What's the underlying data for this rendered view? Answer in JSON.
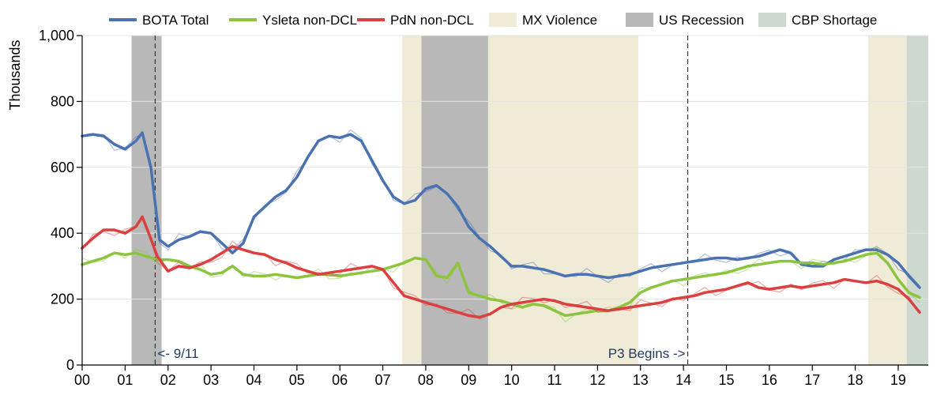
{
  "chart_data": {
    "type": "line",
    "title": "",
    "xlabel": "",
    "ylabel": "Thousands",
    "xlim": [
      2000.0,
      2019.7
    ],
    "ylim": [
      0,
      1000
    ],
    "grid": "horizontal",
    "legend_position": "top",
    "x_ticks": [
      {
        "value": 2000,
        "label": "00"
      },
      {
        "value": 2001,
        "label": "01"
      },
      {
        "value": 2002,
        "label": "02"
      },
      {
        "value": 2003,
        "label": "03"
      },
      {
        "value": 2004,
        "label": "04"
      },
      {
        "value": 2005,
        "label": "05"
      },
      {
        "value": 2006,
        "label": "06"
      },
      {
        "value": 2007,
        "label": "07"
      },
      {
        "value": 2008,
        "label": "08"
      },
      {
        "value": 2009,
        "label": "09"
      },
      {
        "value": 2010,
        "label": "10"
      },
      {
        "value": 2011,
        "label": "11"
      },
      {
        "value": 2012,
        "label": "12"
      },
      {
        "value": 2013,
        "label": "13"
      },
      {
        "value": 2014,
        "label": "14"
      },
      {
        "value": 2015,
        "label": "15"
      },
      {
        "value": 2016,
        "label": "16"
      },
      {
        "value": 2017,
        "label": "17"
      },
      {
        "value": 2018,
        "label": "18"
      },
      {
        "value": 2019,
        "label": "19"
      }
    ],
    "y_ticks": [
      {
        "value": 0,
        "label": "0"
      },
      {
        "value": 200,
        "label": "200"
      },
      {
        "value": 400,
        "label": "400"
      },
      {
        "value": 600,
        "label": "600"
      },
      {
        "value": 800,
        "label": "800"
      },
      {
        "value": 1000,
        "label": "1,000"
      }
    ],
    "bands": [
      {
        "name": "MX Violence",
        "color": "#efebd6",
        "x0": 2007.45,
        "x1": 2012.95
      },
      {
        "name": "MX Violence",
        "color": "#efebd6",
        "x0": 2018.3,
        "x1": 2019.2
      },
      {
        "name": "US Recession",
        "color": "#b8b8b8",
        "x0": 2001.15,
        "x1": 2001.85
      },
      {
        "name": "US Recession",
        "color": "#b8b8b8",
        "x0": 2007.9,
        "x1": 2009.45
      },
      {
        "name": "CBP Shortage",
        "color": "#ccd8d0",
        "x0": 2019.2,
        "x1": 2019.7
      }
    ],
    "vlines": [
      {
        "x": 2001.7,
        "label": "<- 9/11",
        "label_anchor": "start",
        "style": "dashed"
      },
      {
        "x": 2014.1,
        "label": "P3 Begins ->",
        "label_anchor": "end",
        "style": "dashed"
      }
    ],
    "legend": [
      {
        "label": "BOTA Total",
        "kind": "line",
        "color": "#4a72b0"
      },
      {
        "label": "Ysleta non-DCL",
        "kind": "line",
        "color": "#8cc43f"
      },
      {
        "label": "PdN non-DCL",
        "kind": "line",
        "color": "#d9403f"
      },
      {
        "label": "MX Violence",
        "kind": "box",
        "color": "#efebd6"
      },
      {
        "label": "US Recession",
        "kind": "box",
        "color": "#b8b8b8"
      },
      {
        "label": "CBP Shortage",
        "kind": "box",
        "color": "#ccd8d0"
      }
    ],
    "series": [
      {
        "name": "BOTA Total",
        "color": "#4a72b0",
        "x": [
          2000.0,
          2000.25,
          2000.5,
          2000.75,
          2001.0,
          2001.25,
          2001.4,
          2001.6,
          2001.8,
          2002.0,
          2002.25,
          2002.5,
          2002.75,
          2003.0,
          2003.25,
          2003.5,
          2003.75,
          2004.0,
          2004.25,
          2004.5,
          2004.75,
          2005.0,
          2005.25,
          2005.5,
          2005.75,
          2006.0,
          2006.25,
          2006.5,
          2006.75,
          2007.0,
          2007.25,
          2007.5,
          2007.75,
          2008.0,
          2008.25,
          2008.5,
          2008.75,
          2009.0,
          2009.25,
          2009.5,
          2009.75,
          2010.0,
          2010.25,
          2010.5,
          2010.75,
          2011.0,
          2011.25,
          2011.5,
          2011.75,
          2012.0,
          2012.25,
          2012.5,
          2012.75,
          2013.0,
          2013.25,
          2013.5,
          2013.75,
          2014.0,
          2014.25,
          2014.5,
          2014.75,
          2015.0,
          2015.25,
          2015.5,
          2015.75,
          2016.0,
          2016.25,
          2016.5,
          2016.75,
          2017.0,
          2017.25,
          2017.5,
          2017.75,
          2018.0,
          2018.25,
          2018.5,
          2018.75,
          2019.0,
          2019.25,
          2019.5
        ],
        "y": [
          695,
          700,
          695,
          670,
          655,
          680,
          705,
          600,
          380,
          360,
          380,
          390,
          405,
          400,
          370,
          340,
          370,
          450,
          480,
          510,
          530,
          570,
          630,
          680,
          695,
          690,
          700,
          680,
          620,
          560,
          510,
          490,
          500,
          535,
          545,
          520,
          480,
          420,
          385,
          360,
          330,
          300,
          300,
          295,
          290,
          280,
          270,
          275,
          275,
          270,
          265,
          270,
          275,
          285,
          295,
          300,
          305,
          310,
          315,
          320,
          325,
          325,
          320,
          325,
          330,
          340,
          350,
          340,
          305,
          300,
          300,
          320,
          330,
          340,
          350,
          350,
          335,
          310,
          270,
          235
        ]
      },
      {
        "name": "Ysleta non-DCL",
        "color": "#8cc43f",
        "x": [
          2000.0,
          2000.25,
          2000.5,
          2000.75,
          2001.0,
          2001.25,
          2001.5,
          2001.75,
          2002.0,
          2002.25,
          2002.5,
          2002.75,
          2003.0,
          2003.25,
          2003.5,
          2003.75,
          2004.0,
          2004.25,
          2004.5,
          2004.75,
          2005.0,
          2005.25,
          2005.5,
          2005.75,
          2006.0,
          2006.25,
          2006.5,
          2006.75,
          2007.0,
          2007.25,
          2007.5,
          2007.75,
          2008.0,
          2008.25,
          2008.5,
          2008.75,
          2009.0,
          2009.25,
          2009.5,
          2009.75,
          2010.0,
          2010.25,
          2010.5,
          2010.75,
          2011.0,
          2011.25,
          2011.5,
          2011.75,
          2012.0,
          2012.25,
          2012.5,
          2012.75,
          2013.0,
          2013.25,
          2013.5,
          2013.75,
          2014.0,
          2014.25,
          2014.5,
          2014.75,
          2015.0,
          2015.25,
          2015.5,
          2015.75,
          2016.0,
          2016.25,
          2016.5,
          2016.75,
          2017.0,
          2017.25,
          2017.5,
          2017.75,
          2018.0,
          2018.25,
          2018.5,
          2018.75,
          2019.0,
          2019.25,
          2019.5
        ],
        "y": [
          305,
          315,
          325,
          340,
          335,
          340,
          330,
          320,
          320,
          315,
          300,
          290,
          275,
          280,
          300,
          275,
          270,
          270,
          275,
          270,
          265,
          270,
          275,
          275,
          270,
          275,
          280,
          285,
          290,
          300,
          310,
          325,
          320,
          270,
          265,
          310,
          220,
          210,
          200,
          195,
          185,
          175,
          185,
          180,
          165,
          150,
          155,
          160,
          165,
          165,
          175,
          190,
          220,
          235,
          245,
          255,
          260,
          265,
          270,
          275,
          280,
          290,
          300,
          305,
          310,
          315,
          315,
          310,
          310,
          305,
          310,
          315,
          325,
          335,
          340,
          310,
          260,
          220,
          205
        ]
      },
      {
        "name": "PdN non-DCL",
        "color": "#d9403f",
        "x": [
          2000.0,
          2000.25,
          2000.5,
          2000.75,
          2001.0,
          2001.25,
          2001.4,
          2001.55,
          2001.75,
          2002.0,
          2002.25,
          2002.5,
          2002.75,
          2003.0,
          2003.25,
          2003.5,
          2003.75,
          2004.0,
          2004.25,
          2004.5,
          2004.75,
          2005.0,
          2005.25,
          2005.5,
          2005.75,
          2006.0,
          2006.25,
          2006.5,
          2006.75,
          2007.0,
          2007.25,
          2007.5,
          2007.75,
          2008.0,
          2008.25,
          2008.5,
          2008.75,
          2009.0,
          2009.25,
          2009.5,
          2009.75,
          2010.0,
          2010.25,
          2010.5,
          2010.75,
          2011.0,
          2011.25,
          2011.5,
          2011.75,
          2012.0,
          2012.25,
          2012.5,
          2012.75,
          2013.0,
          2013.25,
          2013.5,
          2013.75,
          2014.0,
          2014.25,
          2014.5,
          2014.75,
          2015.0,
          2015.25,
          2015.5,
          2015.75,
          2016.0,
          2016.25,
          2016.5,
          2016.75,
          2017.0,
          2017.25,
          2017.5,
          2017.75,
          2018.0,
          2018.25,
          2018.5,
          2018.75,
          2019.0,
          2019.25,
          2019.5
        ],
        "y": [
          355,
          385,
          410,
          410,
          400,
          420,
          450,
          400,
          330,
          285,
          300,
          295,
          305,
          320,
          340,
          360,
          350,
          340,
          335,
          320,
          310,
          295,
          285,
          275,
          280,
          285,
          290,
          295,
          300,
          290,
          250,
          210,
          200,
          190,
          180,
          170,
          160,
          150,
          145,
          155,
          175,
          185,
          190,
          195,
          200,
          195,
          185,
          180,
          175,
          170,
          165,
          170,
          175,
          180,
          185,
          190,
          200,
          205,
          210,
          220,
          225,
          230,
          240,
          250,
          235,
          230,
          235,
          240,
          235,
          240,
          245,
          250,
          260,
          255,
          250,
          255,
          245,
          230,
          200,
          160
        ]
      }
    ]
  }
}
